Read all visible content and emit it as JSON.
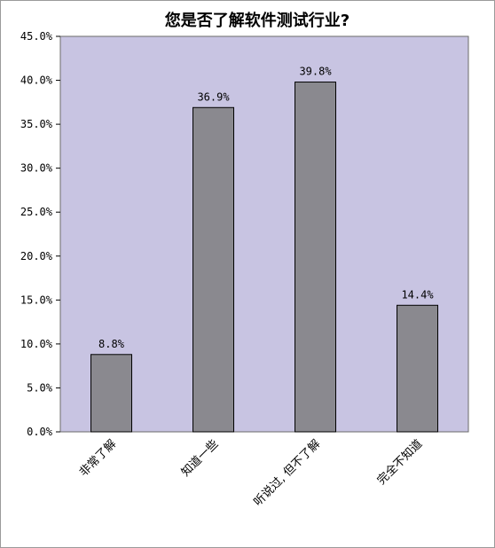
{
  "chart_data": {
    "type": "bar",
    "title": "您是否了解软件测试行业?",
    "categories": [
      "非常了解",
      "知道一些",
      "听说过, 但不了解",
      "完全不知道"
    ],
    "values": [
      8.8,
      36.9,
      39.8,
      14.4
    ],
    "data_labels": [
      "8.8%",
      "36.9%",
      "39.8%",
      "14.4%"
    ],
    "ylim": [
      0,
      45
    ],
    "yticks": [
      "0.0%",
      "5.0%",
      "10.0%",
      "15.0%",
      "20.0%",
      "25.0%",
      "30.0%",
      "35.0%",
      "40.0%",
      "45.0%"
    ],
    "xlabel": "",
    "ylabel": "",
    "grid": false,
    "legend": "none",
    "colors": {
      "plot_background": "#c8c4e2",
      "bar_fill": "#8a898f",
      "bar_stroke": "#000000"
    }
  }
}
